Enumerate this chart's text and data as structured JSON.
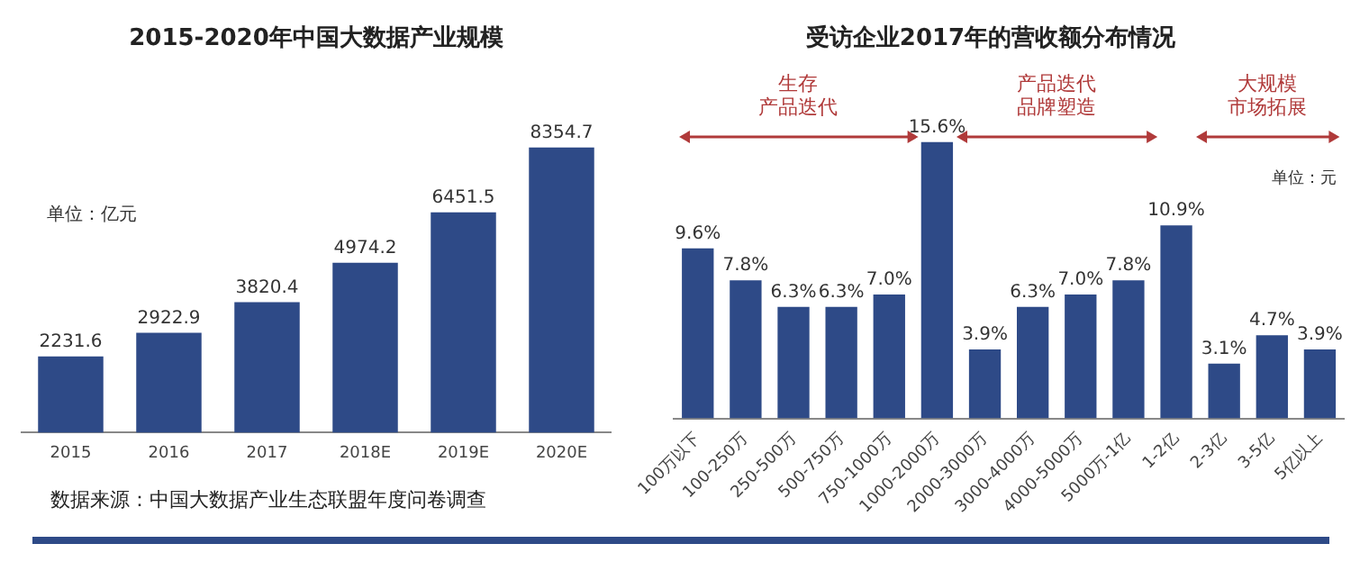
{
  "chart_data": [
    {
      "type": "bar",
      "title": "2015-2020年中国大数据产业规模",
      "categories": [
        "2015",
        "2016",
        "2017",
        "2018E",
        "2019E",
        "2020E"
      ],
      "values": [
        2231.6,
        2922.9,
        3820.4,
        4974.2,
        6451.5,
        8354.7
      ],
      "color": "#2e4a87",
      "data_labels": true,
      "grid": false,
      "legend": false,
      "tick_labels": "x",
      "annotations": [
        "单位：亿元",
        "数据来源：中国大数据产业生态联盟年度问卷调查"
      ]
    },
    {
      "type": "bar",
      "title": "受访企业2017年的营收额分布情况",
      "categories": [
        "100万以下",
        "100-250万",
        "250-500万",
        "500-750万",
        "750-1000万",
        "1000-2000万",
        "2000-3000万",
        "3000-4000万",
        "4000-5000万",
        "5000万-1亿",
        "1-2亿",
        "2-3亿",
        "3-5亿",
        "5亿以上"
      ],
      "values": [
        9.6,
        7.8,
        6.3,
        6.3,
        7.0,
        15.6,
        3.9,
        6.3,
        7.0,
        7.8,
        10.9,
        3.1,
        4.7,
        3.9
      ],
      "value_labels": [
        "9.6%",
        "7.8%",
        "6.3%",
        "6.3%",
        "7.0%",
        "15.6%",
        "3.9%",
        "6.3%",
        "7.0%",
        "7.8%",
        "10.9%",
        "3.1%",
        "4.7%",
        "3.9%"
      ],
      "color": "#2e4a87",
      "grid": false,
      "legend": false,
      "tick_labels": "x",
      "annotations": [
        "生存",
        "产品迭代",
        "产品迭代",
        "品牌塑造",
        "大规模",
        "市场拓展",
        "单位：元"
      ]
    }
  ]
}
